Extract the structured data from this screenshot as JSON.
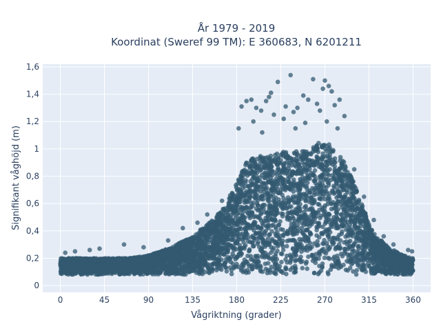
{
  "chart_data": {
    "type": "scatter",
    "title_line1": "År 1979 - 2019",
    "title_line2": "Koordinat (Sweref 99 TM): E 360683, N 6201211",
    "xlabel": "Vågriktning (grader)",
    "ylabel": "Signifikant våghöjd (m)",
    "xlim": [
      -18,
      378
    ],
    "ylim": [
      -0.05,
      1.62
    ],
    "x_ticks": [
      0,
      45,
      90,
      135,
      180,
      225,
      270,
      315,
      360
    ],
    "x_tick_labels": [
      "0",
      "45",
      "90",
      "135",
      "180",
      "225",
      "270",
      "315",
      "360"
    ],
    "y_ticks": [
      0,
      0.2,
      0.4,
      0.6,
      0.8,
      1.0,
      1.2,
      1.4,
      1.6
    ],
    "y_tick_labels": [
      "0",
      "0,2",
      "0,4",
      "0,6",
      "0,8",
      "1",
      "1,2",
      "1,4",
      "1,6"
    ],
    "grid": true,
    "marker_color": "#335a70",
    "plot_background": "#e5ecf6",
    "series": [
      {
        "envelope_x": [
          0,
          20,
          45,
          70,
          90,
          110,
          135,
          150,
          165,
          180,
          190,
          200,
          215,
          225,
          240,
          255,
          265,
          272,
          280,
          290,
          300,
          310,
          320,
          335,
          350,
          360
        ],
        "envelope_y_top": [
          0.2,
          0.2,
          0.2,
          0.2,
          0.22,
          0.27,
          0.36,
          0.45,
          0.55,
          0.75,
          0.9,
          0.95,
          0.95,
          0.98,
          0.98,
          1.0,
          1.05,
          1.05,
          1.0,
          0.9,
          0.75,
          0.55,
          0.38,
          0.28,
          0.22,
          0.2
        ],
        "envelope_y_bottom": [
          0.08,
          0.08,
          0.08,
          0.08,
          0.08,
          0.08,
          0.08,
          0.08,
          0.08,
          0.08,
          0.08,
          0.08,
          0.08,
          0.08,
          0.08,
          0.08,
          0.08,
          0.08,
          0.08,
          0.08,
          0.08,
          0.08,
          0.08,
          0.08,
          0.08,
          0.08
        ],
        "outliers": [
          [
            185,
            1.31
          ],
          [
            190,
            1.35
          ],
          [
            195,
            1.36
          ],
          [
            200,
            1.3
          ],
          [
            205,
            1.28
          ],
          [
            210,
            1.35
          ],
          [
            213,
            1.38
          ],
          [
            215,
            1.41
          ],
          [
            218,
            1.25
          ],
          [
            222,
            1.49
          ],
          [
            230,
            1.31
          ],
          [
            235,
            1.54
          ],
          [
            238,
            1.27
          ],
          [
            242,
            1.3
          ],
          [
            248,
            1.39
          ],
          [
            253,
            1.36
          ],
          [
            258,
            1.51
          ],
          [
            262,
            1.33
          ],
          [
            265,
            1.28
          ],
          [
            268,
            1.44
          ],
          [
            270,
            1.5
          ],
          [
            274,
            1.46
          ],
          [
            277,
            1.42
          ],
          [
            280,
            1.32
          ],
          [
            285,
            1.36
          ],
          [
            290,
            1.24
          ],
          [
            197,
            1.2
          ],
          [
            228,
            1.22
          ],
          [
            250,
            1.19
          ],
          [
            272,
            1.2
          ],
          [
            182,
            1.15
          ],
          [
            206,
            1.12
          ],
          [
            240,
            1.15
          ],
          [
            283,
            1.15
          ],
          [
            165,
            0.62
          ],
          [
            150,
            0.52
          ],
          [
            140,
            0.46
          ],
          [
            125,
            0.42
          ],
          [
            110,
            0.33
          ],
          [
            85,
            0.28
          ],
          [
            65,
            0.3
          ],
          [
            40,
            0.27
          ],
          [
            30,
            0.26
          ],
          [
            15,
            0.25
          ],
          [
            5,
            0.24
          ],
          [
            300,
            0.85
          ],
          [
            310,
            0.65
          ],
          [
            320,
            0.48
          ],
          [
            330,
            0.36
          ],
          [
            340,
            0.3
          ],
          [
            355,
            0.26
          ],
          [
            359,
            0.25
          ]
        ]
      }
    ]
  }
}
